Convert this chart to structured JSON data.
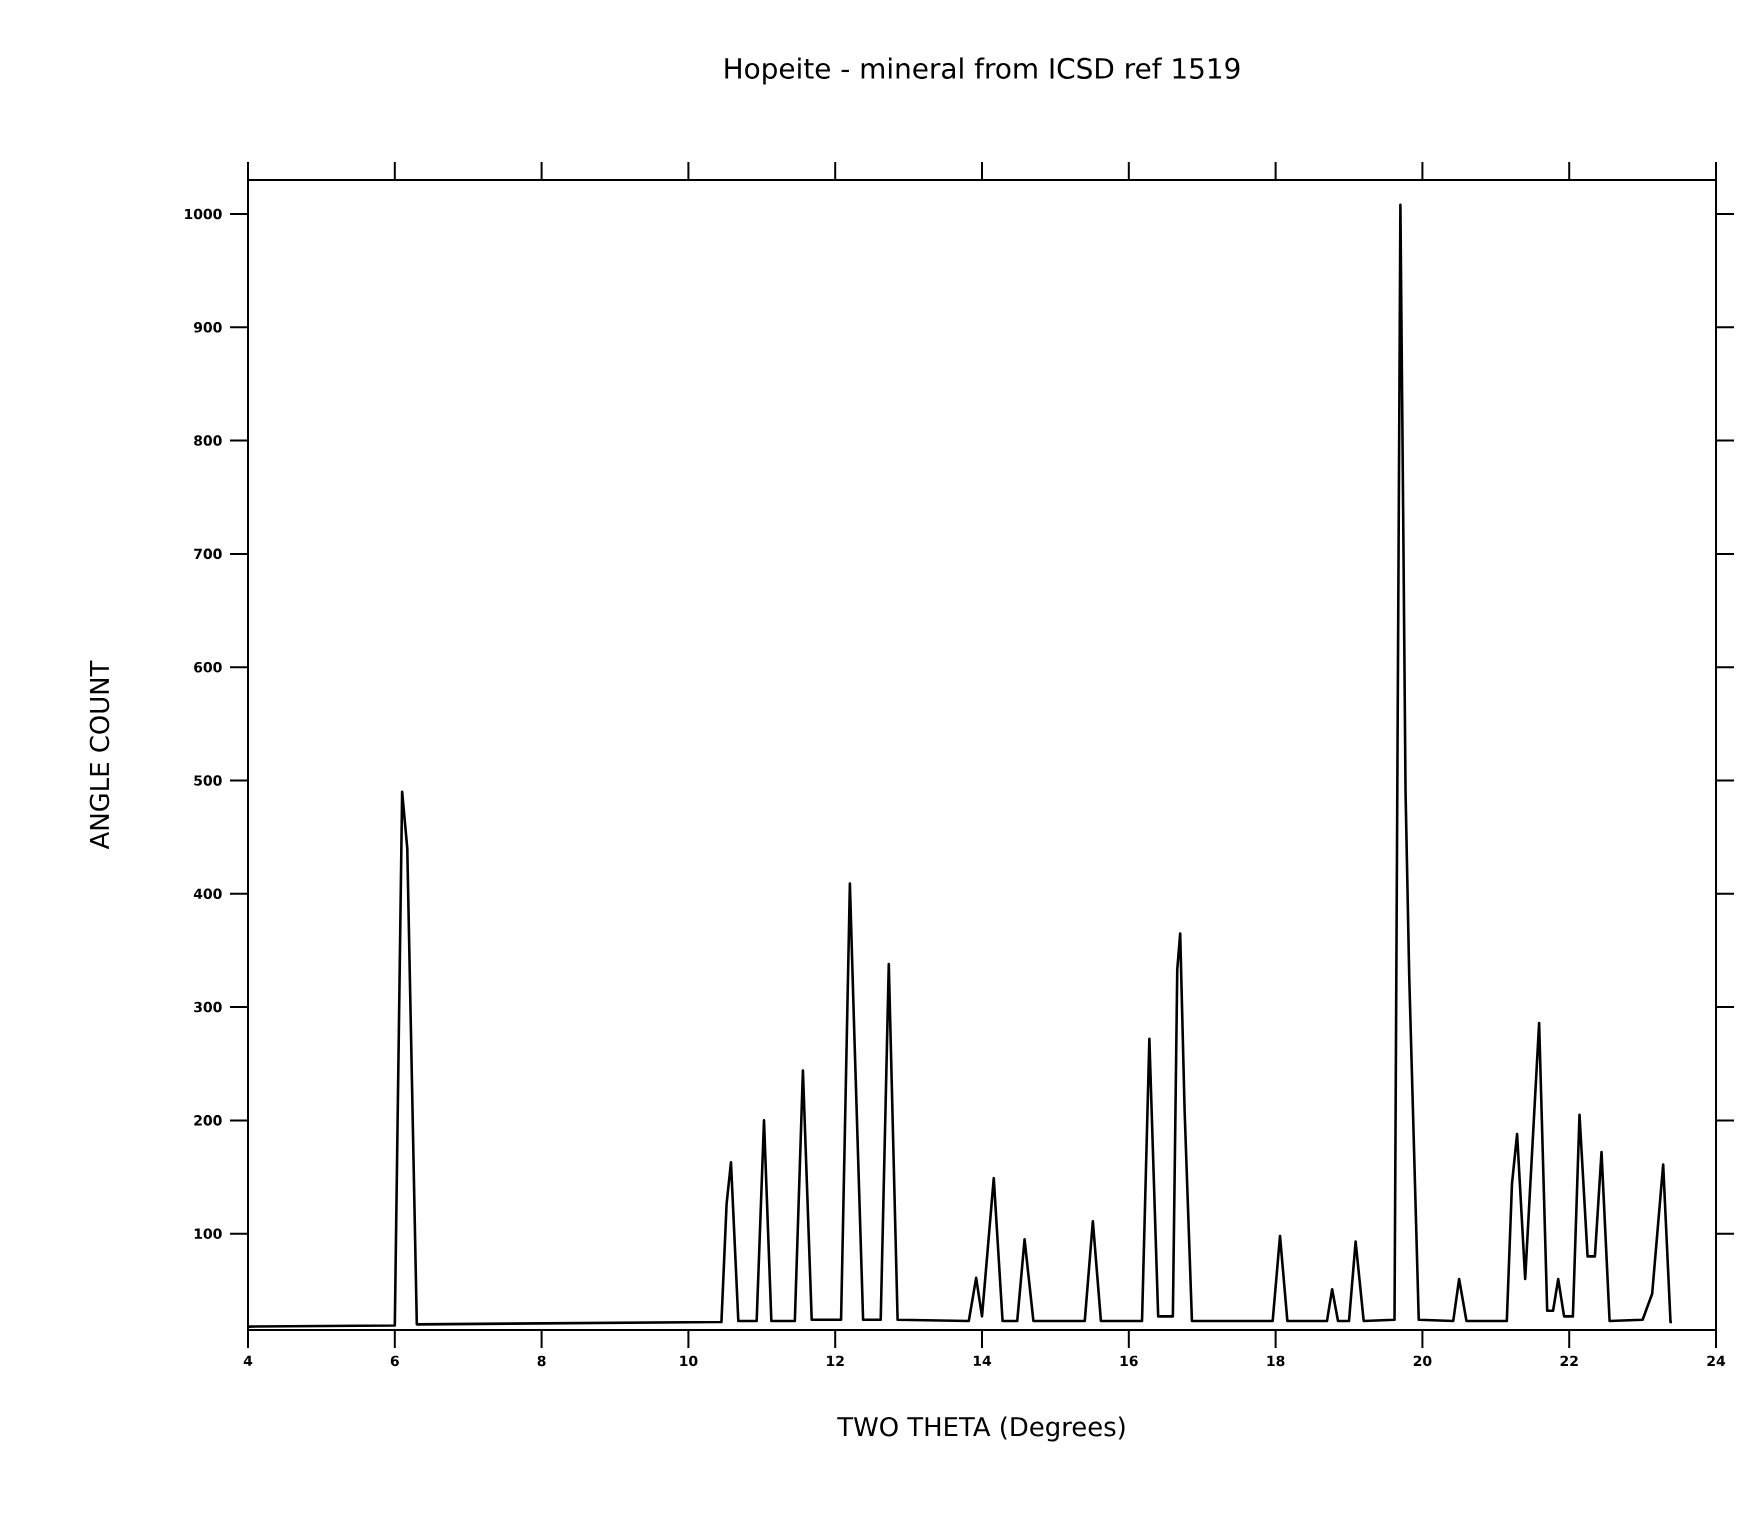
{
  "chart_data": {
    "type": "line",
    "title": "Hopeite - mineral from ICSD ref 1519",
    "xlabel": "TWO THETA  (Degrees)",
    "ylabel": "ANGLE    COUNT",
    "xlim": [
      4,
      24
    ],
    "xticks": [
      4,
      6,
      8,
      10,
      12,
      14,
      16,
      18,
      20,
      22,
      24
    ],
    "ylim": [
      15,
      1030
    ],
    "yticks": [
      100,
      200,
      300,
      400,
      500,
      600,
      700,
      800,
      900,
      1000
    ],
    "grid": false,
    "marker": "none",
    "line_style": "solid",
    "series": [
      {
        "color": "#000000",
        "x": [
          4,
          6.0,
          6.1,
          6.17,
          6.3,
          10.45,
          10.52,
          10.58,
          10.68,
          10.93,
          11.03,
          11.13,
          11.45,
          11.56,
          11.68,
          12.08,
          12.2,
          12.26,
          12.38,
          12.62,
          12.73,
          12.85,
          13.82,
          13.92,
          14.0,
          14.16,
          14.28,
          14.48,
          14.58,
          14.7,
          15.4,
          15.51,
          15.62,
          16.18,
          16.28,
          16.4,
          16.6,
          16.66,
          16.7,
          16.76,
          16.86,
          17.96,
          18.06,
          18.16,
          18.7,
          18.77,
          18.85,
          19.0,
          19.09,
          19.2,
          19.62,
          19.7,
          19.74,
          19.77,
          19.82,
          19.95,
          20.42,
          20.5,
          20.6,
          21.15,
          21.22,
          21.29,
          21.4,
          21.59,
          21.7,
          21.78,
          21.85,
          21.93,
          22.05,
          22.14,
          22.25,
          22.35,
          22.44,
          22.55,
          23.0,
          23.13,
          23.28,
          23.38,
          23.4
        ],
        "values": [
          18,
          19,
          490,
          440,
          20,
          22,
          126,
          163,
          23,
          23,
          200,
          23,
          23,
          244,
          24,
          24,
          409,
          277,
          24,
          24,
          338,
          24,
          23,
          61,
          27,
          149,
          23,
          23,
          95,
          23,
          23,
          111,
          23,
          23,
          272,
          27,
          27,
          333,
          365,
          209,
          23,
          23,
          98,
          23,
          23,
          51,
          23,
          23,
          93,
          23,
          24,
          1008,
          719,
          491,
          328,
          24,
          23,
          60,
          23,
          23,
          144,
          188,
          60,
          286,
          32,
          32,
          60,
          27,
          27,
          205,
          80,
          80,
          172,
          23,
          24,
          47,
          161,
          22,
          22
        ]
      }
    ]
  }
}
